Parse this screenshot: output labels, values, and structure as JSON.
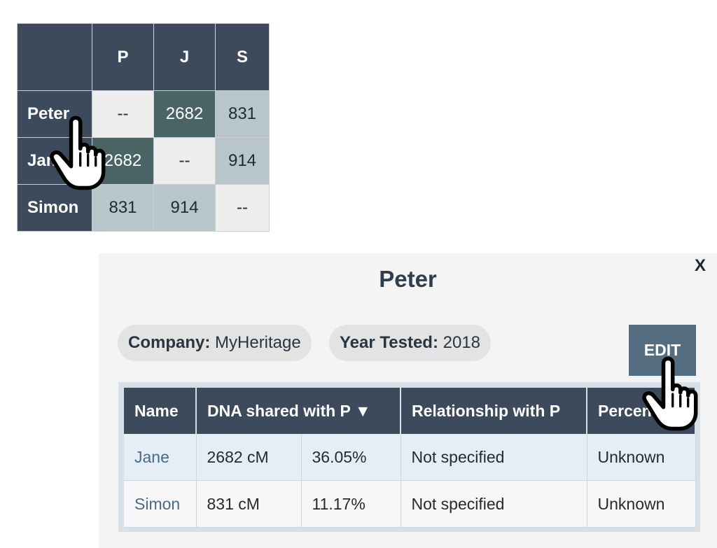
{
  "matrix": {
    "columns": [
      "P",
      "J",
      "S"
    ],
    "rows": [
      {
        "name": "Peter",
        "cells": [
          "--",
          "2682",
          "831"
        ]
      },
      {
        "name": "Jane",
        "cells": [
          "2682",
          "--",
          "914"
        ]
      },
      {
        "name": "Simon",
        "cells": [
          "831",
          "914",
          "--"
        ]
      }
    ]
  },
  "panel": {
    "close_label": "X",
    "title": "Peter",
    "company_label": "Company:",
    "company_value": "MyHeritage",
    "year_label": "Year Tested:",
    "year_value": "2018",
    "edit_label": "EDIT",
    "table": {
      "headers": [
        "Name",
        "DNA shared with P ▼",
        "Relationship with P",
        "Percent"
      ],
      "rows": [
        {
          "name": "Jane",
          "cm": "2682 cM",
          "pct": "36.05%",
          "relationship": "Not specified",
          "percent": "Unknown"
        },
        {
          "name": "Simon",
          "cm": "831 cM",
          "pct": "11.17%",
          "relationship": "Not specified",
          "percent": "Unknown"
        }
      ]
    }
  },
  "colors": {
    "header_navy": "#3c4a5b",
    "dark_cell": "#4a6466",
    "light_cell": "#b8c6cb",
    "edit_button": "#546d80",
    "link": "#4c6a86"
  },
  "icons": {
    "cursor_1": "hand-pointer-icon",
    "cursor_2": "hand-pointer-icon"
  }
}
